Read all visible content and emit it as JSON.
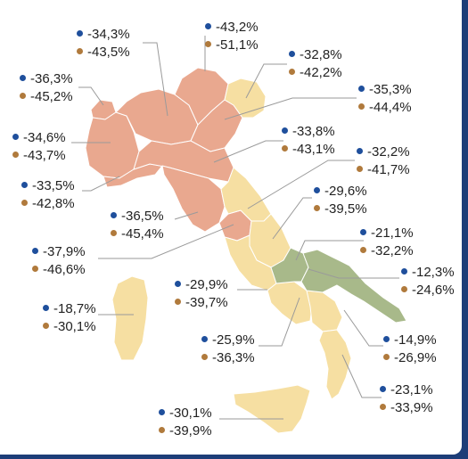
{
  "colors": {
    "high": "#e9a88f",
    "mid": "#f6dfa2",
    "low": "#a8b98a",
    "dot_first": "#1f4f9c",
    "dot_second": "#b07a3c"
  },
  "regions": {
    "valle_aosta": {
      "v1": "-36,3%",
      "v2": "-45,2%"
    },
    "lombardia": {
      "v1": "-34,3%",
      "v2": "-43,5%"
    },
    "trentino": {
      "v1": "-43,2%",
      "v2": "-51,1%"
    },
    "friuli": {
      "v1": "-32,8%",
      "v2": "-42,2%"
    },
    "veneto": {
      "v1": "-35,3%",
      "v2": "-44,4%"
    },
    "piemonte": {
      "v1": "-34,6%",
      "v2": "-43,7%"
    },
    "emilia": {
      "v1": "-33,8%",
      "v2": "-43,1%"
    },
    "liguria": {
      "v1": "-33,5%",
      "v2": "-42,8%"
    },
    "marche": {
      "v1": "-32,2%",
      "v2": "-41,7%"
    },
    "toscana": {
      "v1": "-36,5%",
      "v2": "-45,4%"
    },
    "umbria": {
      "v1": "-29,6%",
      "v2": "-39,5%"
    },
    "abruzzo": {
      "v1": "-21,1%",
      "v2": "-32,2%"
    },
    "lazio": {
      "v1": "-37,9%",
      "v2": "-46,6%"
    },
    "puglia": {
      "v1": "-12,3%",
      "v2": "-24,6%"
    },
    "molise": {
      "v1": "-29,9%",
      "v2": "-39,7%"
    },
    "sardegna": {
      "v1": "-18,7%",
      "v2": "-30,1%"
    },
    "campania": {
      "v1": "-25,9%",
      "v2": "-36,3%"
    },
    "basilicata": {
      "v1": "-14,9%",
      "v2": "-26,9%"
    },
    "calabria": {
      "v1": "-23,1%",
      "v2": "-33,9%"
    },
    "sicilia": {
      "v1": "-30,1%",
      "v2": "-39,9%"
    }
  }
}
